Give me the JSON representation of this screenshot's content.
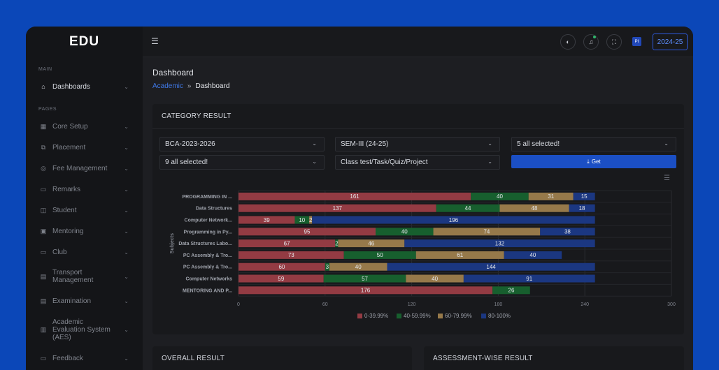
{
  "brand": {
    "logo": "EDU"
  },
  "sidebar": {
    "sections": {
      "main": "MAIN",
      "pages": "PAGES"
    },
    "items": [
      {
        "label": "Dashboards",
        "icon": "home-icon"
      },
      {
        "label": "Core Setup",
        "icon": "grid-icon"
      },
      {
        "label": "Placement",
        "icon": "network-icon"
      },
      {
        "label": "Fee Management",
        "icon": "coin-icon"
      },
      {
        "label": "Remarks",
        "icon": "note-icon"
      },
      {
        "label": "Student",
        "icon": "student-icon"
      },
      {
        "label": "Mentoring",
        "icon": "mentor-icon"
      },
      {
        "label": "Club",
        "icon": "club-icon"
      },
      {
        "label": "Transport Management",
        "icon": "bus-icon"
      },
      {
        "label": "Examination",
        "icon": "exam-icon"
      },
      {
        "label": "Academic Evaluation System (AES)",
        "icon": "chart-icon"
      },
      {
        "label": "Feedback",
        "icon": "feedback-icon"
      }
    ]
  },
  "topbar": {
    "avatar_initials": "PI",
    "year": "2024-25"
  },
  "page": {
    "title": "Dashboard",
    "breadcrumb_link": "Academic",
    "breadcrumb_sep": "»",
    "breadcrumb_current": "Dashboard"
  },
  "category": {
    "title": "CATEGORY RESULT",
    "filters": {
      "batch": "BCA-2023-2026",
      "semester": "SEM-III (24-25)",
      "subjects": "5 all selected!",
      "assessments": "9 all selected!",
      "types": "Class test/Task/Quiz/Project"
    },
    "get_label": "Get"
  },
  "chart_data": {
    "type": "bar",
    "orientation": "horizontal",
    "stacked": true,
    "ylabel": "Subjects",
    "xlabel": "",
    "xlim": [
      0,
      300
    ],
    "xticks": [
      0,
      60,
      120,
      180,
      240,
      300
    ],
    "categories": [
      "PROGRAMMING IN ...",
      "Data Structures",
      "Computer Network...",
      "Programming in Py...",
      "Data Structures Labo...",
      "PC Assembly & Tro...",
      "PC Assembly & Tro...",
      "Computer Networks",
      "MENTORING AND P..."
    ],
    "series": [
      {
        "name": "0-39.99%",
        "color": "#933b43",
        "values": [
          161,
          137,
          39,
          95,
          67,
          73,
          60,
          59,
          176
        ]
      },
      {
        "name": "40-59.99%",
        "color": "#175f2e",
        "values": [
          40,
          44,
          10,
          40,
          2,
          50,
          3,
          57,
          26
        ]
      },
      {
        "name": "60-79.99%",
        "color": "#96794a",
        "values": [
          31,
          48,
          2,
          74,
          46,
          61,
          40,
          40,
          0
        ]
      },
      {
        "name": "80-100%",
        "color": "#1b3781",
        "values": [
          15,
          18,
          196,
          38,
          132,
          40,
          144,
          91,
          0
        ]
      }
    ],
    "legend_position": "bottom"
  },
  "overall": {
    "title": "OVERALL RESULT"
  },
  "assessment": {
    "title": "ASSESSMENT-WISE RESULT"
  }
}
